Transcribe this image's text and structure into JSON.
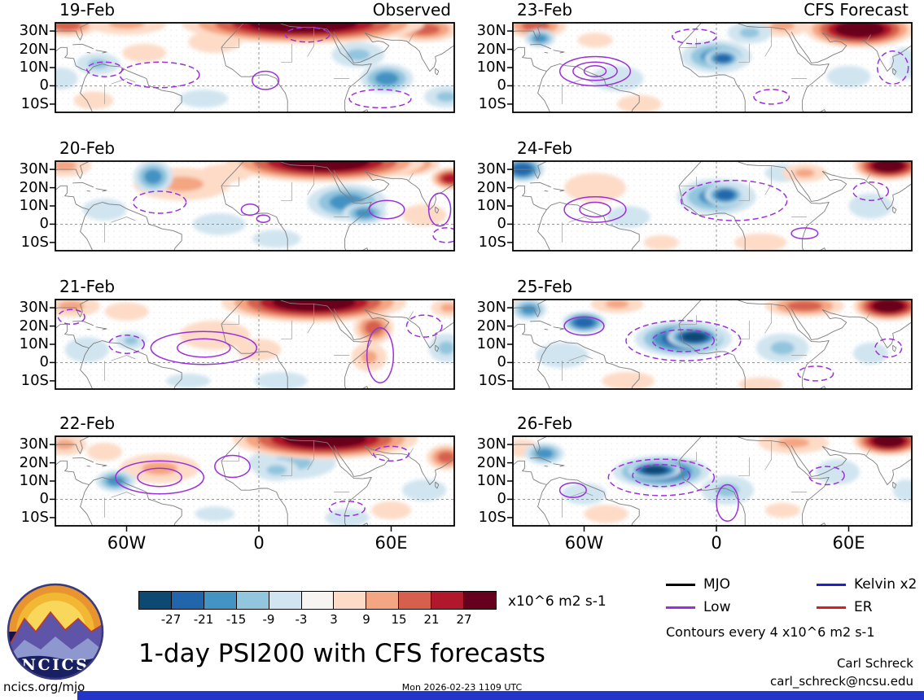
{
  "chart_data": {
    "type": "heatmap",
    "title": "1-day PSI200 with CFS forecasts",
    "column_titles": {
      "left": "Observed",
      "right": "CFS Forecast"
    },
    "units": "x10^6 m2 s-1",
    "contour_note": "Contours every 4 x10^6 m2 s-1",
    "lon_range": [
      -92,
      89
    ],
    "lat_range": [
      -14.5,
      34.5
    ],
    "x_ticks": [
      {
        "label": "60W",
        "lon": -60
      },
      {
        "label": "0",
        "lon": 0
      },
      {
        "label": "60E",
        "lon": 60
      }
    ],
    "y_ticks": [
      {
        "label": "30N",
        "lat": 30
      },
      {
        "label": "20N",
        "lat": 20
      },
      {
        "label": "10N",
        "lat": 10
      },
      {
        "label": "0",
        "lat": 0
      },
      {
        "label": "10S",
        "lat": -10
      }
    ],
    "colorbar": {
      "levels": [
        -27,
        -21,
        -15,
        -9,
        -3,
        3,
        9,
        15,
        21,
        27
      ],
      "colors": [
        "#0d4a73",
        "#2166ac",
        "#4393c3",
        "#92c5de",
        "#d1e5f0",
        "#f7f5f1",
        "#fddbc7",
        "#f4a582",
        "#d6604d",
        "#b2182b",
        "#67001f"
      ]
    },
    "legend": [
      {
        "label": "MJO",
        "color": "#000000"
      },
      {
        "label": "Low",
        "color": "#9b30d9"
      },
      {
        "label": "Kelvin x2",
        "color": "#2020cc"
      },
      {
        "label": "ER",
        "color": "#d62020"
      }
    ],
    "panels": [
      {
        "date": "19-Feb",
        "col": 0,
        "row": 0,
        "corner": "Observed",
        "blobs": [
          [
            -87,
            33,
            14,
            6,
            15
          ],
          [
            -60,
            34,
            18,
            6,
            9
          ],
          [
            20,
            34,
            55,
            11,
            30
          ],
          [
            75,
            31,
            16,
            7,
            18
          ],
          [
            -52,
            18,
            10,
            5,
            6
          ],
          [
            -20,
            24,
            12,
            6,
            6
          ],
          [
            -75,
            -8,
            9,
            5,
            5
          ],
          [
            -73,
            12,
            10,
            6,
            -12
          ],
          [
            -90,
            4,
            8,
            6,
            -8
          ],
          [
            45,
            17,
            12,
            7,
            -9
          ],
          [
            58,
            4,
            12,
            8,
            -20
          ],
          [
            85,
            -6,
            10,
            6,
            -9
          ],
          [
            -25,
            -7,
            11,
            5,
            -5
          ]
        ],
        "contours": [
          [
            -45,
            6,
            18,
            7,
            "d"
          ],
          [
            -70,
            9,
            8,
            4,
            "d"
          ],
          [
            3,
            3,
            6,
            5,
            "s"
          ],
          [
            55,
            -7,
            14,
            5,
            "d"
          ],
          [
            22,
            28,
            10,
            4,
            "d"
          ]
        ]
      },
      {
        "date": "20-Feb",
        "col": 0,
        "row": 1,
        "blobs": [
          [
            -88,
            32,
            12,
            6,
            9
          ],
          [
            -35,
            22,
            22,
            9,
            9
          ],
          [
            -15,
            28,
            12,
            5,
            6
          ],
          [
            30,
            34,
            45,
            11,
            30
          ],
          [
            62,
            33,
            20,
            7,
            21
          ],
          [
            87,
            25,
            9,
            6,
            24
          ],
          [
            75,
            5,
            10,
            6,
            5
          ],
          [
            -48,
            26,
            9,
            9,
            -18
          ],
          [
            -70,
            8,
            10,
            6,
            -6
          ],
          [
            40,
            12,
            18,
            10,
            -15
          ],
          [
            48,
            6,
            10,
            6,
            -18
          ],
          [
            8,
            -8,
            11,
            5,
            -5
          ],
          [
            -18,
            0,
            12,
            6,
            -4
          ]
        ],
        "contours": [
          [
            -45,
            12,
            12,
            6,
            "d"
          ],
          [
            -4,
            8,
            4,
            3,
            "s"
          ],
          [
            2,
            3,
            3,
            2,
            "s"
          ],
          [
            58,
            8,
            8,
            5,
            "s"
          ],
          [
            82,
            8,
            5,
            9,
            "s"
          ],
          [
            85,
            -6,
            6,
            4,
            "d"
          ]
        ]
      },
      {
        "date": "21-Feb",
        "col": 0,
        "row": 2,
        "blobs": [
          [
            -85,
            31,
            13,
            6,
            12
          ],
          [
            -60,
            28,
            10,
            5,
            8
          ],
          [
            25,
            33,
            42,
            11,
            30
          ],
          [
            -20,
            15,
            16,
            8,
            8
          ],
          [
            0,
            7,
            10,
            6,
            6
          ],
          [
            52,
            19,
            9,
            9,
            18
          ],
          [
            50,
            3,
            8,
            8,
            9
          ],
          [
            86,
            30,
            8,
            5,
            12
          ],
          [
            -58,
            12,
            7,
            5,
            -12
          ],
          [
            -78,
            7,
            10,
            7,
            -6
          ],
          [
            85,
            8,
            8,
            8,
            -9
          ],
          [
            10,
            -10,
            12,
            5,
            -6
          ],
          [
            -32,
            -10,
            10,
            4,
            -4
          ]
        ],
        "contours": [
          [
            -25,
            8,
            24,
            9,
            "s"
          ],
          [
            -25,
            8,
            12,
            5,
            "s"
          ],
          [
            -60,
            10,
            8,
            5,
            "d"
          ],
          [
            55,
            4,
            6,
            15,
            "s"
          ],
          [
            75,
            20,
            8,
            6,
            "d"
          ],
          [
            -85,
            25,
            6,
            4,
            "d"
          ]
        ]
      },
      {
        "date": "22-Feb",
        "col": 0,
        "row": 3,
        "blobs": [
          [
            -88,
            30,
            10,
            6,
            9
          ],
          [
            -70,
            26,
            8,
            5,
            6
          ],
          [
            30,
            33,
            42,
            11,
            30
          ],
          [
            -45,
            17,
            18,
            8,
            9
          ],
          [
            85,
            23,
            9,
            7,
            18
          ],
          [
            60,
            -6,
            9,
            5,
            4
          ],
          [
            -65,
            10,
            9,
            6,
            -15
          ],
          [
            15,
            20,
            20,
            9,
            -9
          ],
          [
            8,
            16,
            10,
            6,
            -12
          ],
          [
            75,
            5,
            10,
            6,
            -6
          ],
          [
            -20,
            -8,
            9,
            4,
            -4
          ],
          [
            40,
            -10,
            10,
            5,
            -5
          ]
        ],
        "contours": [
          [
            -45,
            12,
            20,
            9,
            "s"
          ],
          [
            -45,
            12,
            10,
            5,
            "s"
          ],
          [
            -12,
            18,
            8,
            6,
            "s"
          ],
          [
            60,
            25,
            8,
            4,
            "d"
          ],
          [
            40,
            -5,
            8,
            4,
            "d"
          ]
        ]
      },
      {
        "date": "23-Feb",
        "col": 1,
        "row": 0,
        "corner": "CFS Forecast",
        "blobs": [
          [
            -82,
            33,
            14,
            7,
            15
          ],
          [
            30,
            33,
            12,
            6,
            9
          ],
          [
            65,
            31,
            25,
            10,
            30
          ],
          [
            -55,
            25,
            8,
            4,
            5
          ],
          [
            -35,
            -10,
            10,
            5,
            4
          ],
          [
            -80,
            26,
            7,
            5,
            -18
          ],
          [
            15,
            29,
            10,
            6,
            -9
          ],
          [
            0,
            16,
            16,
            9,
            -15
          ],
          [
            3,
            15,
            8,
            5,
            -21
          ],
          [
            -45,
            4,
            12,
            7,
            -6
          ],
          [
            85,
            12,
            6,
            9,
            -6
          ],
          [
            60,
            5,
            10,
            6,
            -4
          ]
        ],
        "contours": [
          [
            -55,
            8,
            16,
            8,
            "s"
          ],
          [
            -55,
            8,
            10,
            5,
            "s"
          ],
          [
            -55,
            8,
            5,
            3,
            "s"
          ],
          [
            -10,
            27,
            10,
            4,
            "d"
          ],
          [
            80,
            10,
            7,
            9,
            "d"
          ],
          [
            25,
            -6,
            8,
            4,
            "d"
          ]
        ]
      },
      {
        "date": "24-Feb",
        "col": 1,
        "row": 1,
        "blobs": [
          [
            78,
            32,
            16,
            8,
            27
          ],
          [
            40,
            28,
            10,
            5,
            9
          ],
          [
            -55,
            20,
            14,
            8,
            8
          ],
          [
            20,
            -10,
            12,
            5,
            5
          ],
          [
            -25,
            -10,
            8,
            4,
            4
          ],
          [
            -88,
            30,
            10,
            7,
            -24
          ],
          [
            0,
            15,
            18,
            10,
            -18
          ],
          [
            4,
            16,
            9,
            6,
            -24
          ],
          [
            -40,
            4,
            10,
            6,
            -6
          ],
          [
            70,
            10,
            10,
            7,
            -6
          ],
          [
            30,
            28,
            8,
            5,
            -6
          ]
        ],
        "contours": [
          [
            -55,
            8,
            14,
            7,
            "s"
          ],
          [
            -55,
            8,
            7,
            4,
            "s"
          ],
          [
            8,
            13,
            24,
            11,
            "d"
          ],
          [
            70,
            18,
            8,
            5,
            "d"
          ],
          [
            40,
            -5,
            6,
            3,
            "s"
          ]
        ]
      },
      {
        "date": "25-Feb",
        "col": 1,
        "row": 2,
        "blobs": [
          [
            78,
            31,
            16,
            8,
            27
          ],
          [
            40,
            31,
            18,
            6,
            15
          ],
          [
            -45,
            32,
            12,
            5,
            9
          ],
          [
            -88,
            33,
            7,
            4,
            6
          ],
          [
            -40,
            -10,
            12,
            5,
            5
          ],
          [
            20,
            -12,
            10,
            4,
            4
          ],
          [
            -85,
            29,
            8,
            6,
            -15
          ],
          [
            -60,
            22,
            10,
            6,
            -21
          ],
          [
            -15,
            13,
            22,
            10,
            -21
          ],
          [
            -10,
            14,
            12,
            6,
            -27
          ],
          [
            -70,
            4,
            12,
            7,
            -6
          ],
          [
            30,
            8,
            12,
            8,
            -9
          ],
          [
            70,
            5,
            8,
            6,
            -5
          ]
        ],
        "contours": [
          [
            -15,
            12,
            26,
            11,
            "d"
          ],
          [
            -15,
            12,
            14,
            6,
            "d"
          ],
          [
            -60,
            20,
            9,
            5,
            "s"
          ],
          [
            78,
            8,
            6,
            5,
            "d"
          ],
          [
            45,
            -6,
            8,
            4,
            "d"
          ]
        ]
      },
      {
        "date": "26-Feb",
        "col": 1,
        "row": 3,
        "blobs": [
          [
            78,
            32,
            16,
            8,
            27
          ],
          [
            35,
            31,
            16,
            6,
            12
          ],
          [
            -88,
            28,
            8,
            5,
            6
          ],
          [
            -50,
            -8,
            10,
            5,
            5
          ],
          [
            30,
            -6,
            8,
            4,
            4
          ],
          [
            -78,
            25,
            9,
            6,
            -15
          ],
          [
            -25,
            15,
            22,
            9,
            -21
          ],
          [
            -28,
            16,
            12,
            5,
            -27
          ],
          [
            5,
            5,
            12,
            8,
            -9
          ],
          [
            -60,
            3,
            10,
            6,
            -6
          ],
          [
            55,
            15,
            10,
            7,
            -6
          ],
          [
            86,
            5,
            6,
            6,
            -5
          ]
        ],
        "contours": [
          [
            -25,
            12,
            24,
            10,
            "d"
          ],
          [
            -25,
            13,
            13,
            6,
            "d"
          ],
          [
            5,
            -2,
            5,
            10,
            "s"
          ],
          [
            50,
            13,
            8,
            5,
            "d"
          ],
          [
            -65,
            5,
            6,
            4,
            "s"
          ]
        ]
      }
    ]
  },
  "footer": {
    "site": "ncics.org/mjo",
    "timestamp": "Mon 2026-02-23 1109 UTC",
    "author": "Carl Schreck",
    "email": "carl_schreck@ncsu.edu"
  },
  "logo": {
    "text": "NCICS"
  }
}
